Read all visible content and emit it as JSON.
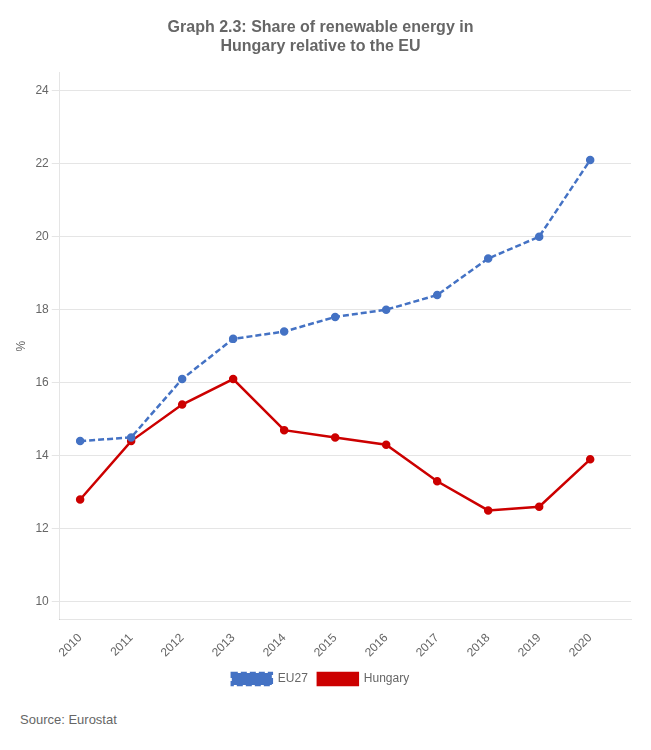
{
  "chart_data": {
    "type": "line",
    "title": "Graph 2.3: Share of renewable energy in\nHungary relative to the EU",
    "y_label": "%",
    "x": [
      2010,
      2011,
      2012,
      2013,
      2014,
      2015,
      2016,
      2017,
      2018,
      2019,
      2020
    ],
    "series": [
      {
        "name": "EU27",
        "color": "#4472C4",
        "line_style": "dashed",
        "values": [
          14.4,
          14.5,
          16.1,
          17.2,
          17.4,
          17.8,
          18.0,
          18.4,
          19.4,
          20.0,
          22.1
        ]
      },
      {
        "name": "Hungary",
        "color": "#CC0000",
        "line_style": "solid",
        "values": [
          12.8,
          14.4,
          15.4,
          16.1,
          14.7,
          14.5,
          14.3,
          13.3,
          12.5,
          12.6,
          13.9
        ]
      }
    ],
    "xlim": [
      2009.6,
      2020.8
    ],
    "xticks": [
      2010,
      2011,
      2012,
      2013,
      2014,
      2015,
      2016,
      2017,
      2018,
      2019,
      2020
    ],
    "ylim": [
      9.5,
      24.5
    ],
    "yticks": [
      10,
      12,
      14,
      16,
      18,
      20,
      22,
      24
    ],
    "grid": "y",
    "legend": "bottom",
    "source": "Source: Eurostat"
  }
}
